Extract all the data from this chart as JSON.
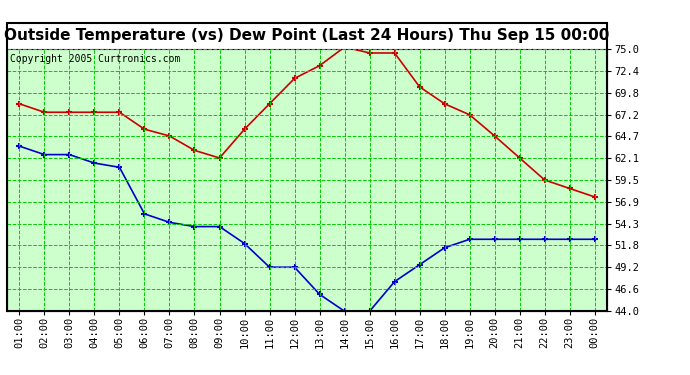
{
  "title": "Outside Temperature (vs) Dew Point (Last 24 Hours) Thu Sep 15 00:00",
  "copyright": "Copyright 2005 Curtronics.com",
  "hours": [
    "01:00",
    "02:00",
    "03:00",
    "04:00",
    "05:00",
    "06:00",
    "07:00",
    "08:00",
    "09:00",
    "10:00",
    "11:00",
    "12:00",
    "13:00",
    "14:00",
    "15:00",
    "16:00",
    "17:00",
    "18:00",
    "19:00",
    "20:00",
    "21:00",
    "22:00",
    "23:00",
    "00:00"
  ],
  "temp": [
    68.5,
    67.5,
    67.5,
    67.5,
    67.5,
    65.5,
    64.7,
    63.0,
    62.1,
    65.5,
    68.5,
    71.5,
    73.0,
    75.2,
    74.5,
    74.5,
    70.5,
    68.5,
    67.2,
    64.7,
    62.1,
    59.5,
    58.5,
    57.5
  ],
  "dew": [
    63.5,
    62.5,
    62.5,
    61.5,
    61.0,
    55.5,
    54.5,
    54.0,
    54.0,
    52.0,
    49.2,
    49.2,
    46.0,
    44.0,
    44.0,
    47.5,
    49.5,
    51.5,
    52.5,
    52.5,
    52.5,
    52.5,
    52.5,
    52.5
  ],
  "temp_color": "#cc0000",
  "dew_color": "#0000cc",
  "grid_color": "#00cc00",
  "plot_bg": "#ccffcc",
  "outer_bg": "#ffffff",
  "border_color": "#000000",
  "ylim": [
    44.0,
    75.0
  ],
  "yticks": [
    44.0,
    46.6,
    49.2,
    51.8,
    54.3,
    56.9,
    59.5,
    62.1,
    64.7,
    67.2,
    69.8,
    72.4,
    75.0
  ],
  "title_fontsize": 11,
  "copyright_fontsize": 7,
  "tick_fontsize": 7.5,
  "ytick_fontsize": 7.5
}
